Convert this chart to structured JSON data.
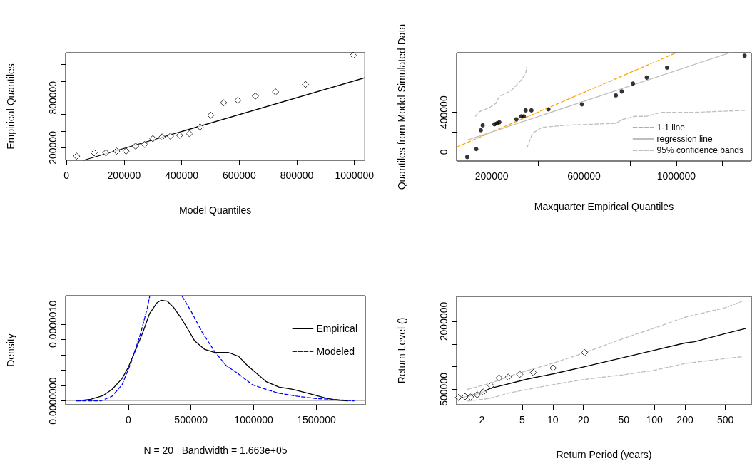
{
  "chart_data": [
    {
      "type": "scatter",
      "xlabel": "Model Quantiles",
      "ylabel": "Empirical Quantiles",
      "xlim": [
        -3000,
        1036000
      ],
      "ylim": [
        50000,
        1340000
      ],
      "xticks": [
        0,
        200000,
        400000,
        600000,
        800000,
        1000000
      ],
      "yticks": [
        200000,
        {
          "value": 400000,
          "label": null
        },
        {
          "value": 600000,
          "label": null
        },
        800000,
        {
          "value": 1000000,
          "label": null
        },
        {
          "value": 1200000,
          "label": null
        }
      ],
      "grid": false,
      "series": [
        {
          "color": "#000000",
          "marker": "diamond",
          "x": [
            35000,
            96000,
            137000,
            174000,
            207000,
            240000,
            271000,
            300000,
            332000,
            361000,
            393000,
            427000,
            464000,
            501000,
            546000,
            595000,
            656000,
            726000,
            830000,
            996000
          ],
          "values": [
            100000,
            140000,
            140000,
            160000,
            160000,
            220000,
            240000,
            310000,
            330000,
            340000,
            350000,
            370000,
            450000,
            590000,
            740000,
            770000,
            820000,
            870000,
            960000,
            1310000
          ]
        },
        {
          "type": "line",
          "color": "#000000",
          "marker": "none",
          "line_style": "solid",
          "x": [
            59000,
            1036000
          ],
          "values": [
            50000,
            1040000
          ]
        }
      ]
    },
    {
      "type": "scatter",
      "xlabel": "Maxquarter Empirical Quantiles",
      "ylabel": "Quantiles from Model Simulated Data",
      "xlim": [
        48000,
        1325000
      ],
      "ylim": [
        -90000,
        1000000
      ],
      "xticks": [
        200000,
        {
          "value": 400000,
          "label": null
        },
        600000,
        {
          "value": 800000,
          "label": null
        },
        1000000,
        {
          "value": 1200000,
          "label": null
        }
      ],
      "yticks": [
        0,
        {
          "value": 200000,
          "label": null
        },
        400000,
        {
          "value": 600000,
          "label": null
        },
        {
          "value": 800000,
          "label": null
        }
      ],
      "grid": false,
      "legend": "bottom right",
      "series": [
        {
          "color": "#000000",
          "marker": "circle",
          "x": [
            94000,
            133000,
            153000,
            161000,
            212000,
            223000,
            233000,
            307000,
            328000,
            339000,
            347000,
            372000,
            446000,
            591000,
            738000,
            764000,
            812000,
            872000,
            960000,
            1296000
          ],
          "values": [
            -50000,
            30000,
            220000,
            270000,
            280000,
            290000,
            300000,
            330000,
            360000,
            360000,
            420000,
            420000,
            430000,
            480000,
            570000,
            610000,
            690000,
            750000,
            850000,
            970000
          ]
        },
        {
          "type": "line",
          "name": "1-1 line",
          "color": "#ffa500",
          "marker": "none",
          "line_style": "dashed",
          "x": [
            48000,
            1000000
          ],
          "values": [
            50000,
            1000000
          ]
        },
        {
          "type": "line",
          "name": "regression line",
          "color": "#bebebe",
          "marker": "none",
          "line_style": "solid",
          "x": [
            94000,
            1232000
          ],
          "values": [
            120000,
            1000000
          ]
        },
        {
          "type": "line",
          "name": "95% confidence bands",
          "color": "#bebebe",
          "marker": "none",
          "line_style": "dashed",
          "x": [
            130000,
            140000,
            192000,
            218000,
            233000,
            285000,
            326000,
            347000,
            352000,
            null,
            352000,
            377000,
            419000,
            522000,
            738000,
            769000,
            820000,
            872000,
            934000,
            1078000,
            1300000
          ],
          "values": [
            360000,
            400000,
            450000,
            490000,
            560000,
            620000,
            720000,
            790000,
            860000,
            null,
            40000,
            190000,
            250000,
            270000,
            290000,
            330000,
            360000,
            360000,
            400000,
            400000,
            420000
          ]
        }
      ]
    },
    {
      "type": "line",
      "xlabel": "N = 20   Bandwidth = 1.663e+05",
      "ylabel": "Density",
      "xlim": [
        -500000,
        1890000
      ],
      "ylim": [
        -5e-08,
        1.37e-06
      ],
      "xticks": [
        0,
        500000,
        1000000,
        1500000
      ],
      "yticks": [
        {
          "value": 0,
          "label": "0.0000000"
        },
        {
          "value": 2e-07,
          "label": null
        },
        {
          "value": 4e-07,
          "label": null
        },
        {
          "value": 6e-07,
          "label": null
        },
        {
          "value": 8e-07,
          "label": null
        },
        {
          "value": 1e-06,
          "label": "0.0000010"
        },
        {
          "value": 1.2e-06,
          "label": null
        }
      ],
      "grid": false,
      "legend": "top right",
      "ref_lines": [
        {
          "axis": "y",
          "value": 0,
          "color": "#bebebe"
        }
      ],
      "series": [
        {
          "name": "Empirical",
          "color": "#000000",
          "marker": "none",
          "line_style": "solid",
          "x": [
            -410000,
            -300000,
            -200000,
            -130000,
            -50000,
            0,
            60000,
            120000,
            170000,
            230000,
            260000,
            310000,
            360000,
            420000,
            480000,
            530000,
            610000,
            690000,
            800000,
            880000,
            950000,
            1030000,
            1100000,
            1200000,
            1310000,
            1410000,
            1500000,
            1590000,
            1670000,
            1750000
          ],
          "values": [
            0,
            2e-08,
            7e-08,
            1.5e-07,
            2.9e-07,
            4.4e-07,
            6.7e-07,
            9.1e-07,
            1.14e-06,
            1.28e-06,
            1.31e-06,
            1.3e-06,
            1.22e-06,
            1.08e-06,
            9.2e-07,
            7.8e-07,
            6.7e-07,
            6.3e-07,
            6.3e-07,
            5.8e-07,
            4.6e-07,
            3.5e-07,
            2.5e-07,
            1.8e-07,
            1.5e-07,
            1.1e-07,
            7e-08,
            3e-08,
            1e-08,
            0
          ]
        },
        {
          "name": "Modeled",
          "color": "#0000ff",
          "marker": "none",
          "line_style": "dashed",
          "x": [
            -410000,
            -220000,
            -130000,
            -50000,
            20000,
            100000,
            150000,
            170000,
            null,
            430000,
            500000,
            590000,
            690000,
            780000,
            880000,
            990000,
            1100000,
            1200000,
            1350000,
            1500000,
            1630000,
            1800000
          ],
          "values": [
            0,
            0,
            6e-08,
            2.1e-07,
            4.9e-07,
            8.9e-07,
            1.2e-06,
            1.36e-06,
            null,
            1.36e-06,
            1.17e-06,
            8.9e-07,
            6.4e-07,
            4.6e-07,
            3.5e-07,
            2.1e-07,
            1.5e-07,
            1e-07,
            6e-08,
            3e-08,
            2e-08,
            0
          ]
        }
      ]
    },
    {
      "type": "line",
      "xlabel": "Return Period (years)",
      "ylabel": "Return Level ()",
      "log": "x",
      "xlim": [
        1.13,
        900
      ],
      "ylim": [
        160000,
        2550000
      ],
      "xticks": [
        2,
        5,
        10,
        20,
        50,
        100,
        200,
        500
      ],
      "yticks": [
        500000,
        {
          "value": 1000000,
          "label": null
        },
        {
          "value": 1500000,
          "label": null
        },
        2000000,
        {
          "value": 2500000,
          "label": null
        }
      ],
      "grid": false,
      "series": [
        {
          "color": "#000000",
          "marker": "none",
          "line_style": "solid",
          "x": [
            1.13,
            1.49,
            1.97,
            2.41,
            3.34,
            5.72,
            10,
            20.6,
            49.3,
            99.3,
            198,
            248,
            500,
            788
          ],
          "values": [
            300000,
            350000,
            420000,
            520000,
            600000,
            730000,
            840000,
            1000000,
            1200000,
            1360000,
            1520000,
            1550000,
            1730000,
            1840000
          ]
        },
        {
          "color": "#bebebe",
          "marker": "none",
          "line_style": "dashed",
          "x": [
            1.45,
            2.41,
            3.71,
            5.72,
            9.79,
            20.8,
            49.3,
            99.3,
            200,
            500,
            728
          ],
          "values": [
            500000,
            630000,
            790000,
            920000,
            1070000,
            1310000,
            1620000,
            1850000,
            2090000,
            2300000,
            2440000
          ]
        },
        {
          "color": "#bebebe",
          "marker": "none",
          "line_style": "dashed",
          "x": [
            1.45,
            2.41,
            3.71,
            5.72,
            9.79,
            20.8,
            49.3,
            99.3,
            200,
            500,
            728
          ],
          "values": [
            240000,
            300000,
            420000,
            500000,
            600000,
            720000,
            820000,
            920000,
            1070000,
            1180000,
            1220000
          ]
        },
        {
          "type": "scatter",
          "color": "#000000",
          "marker": "diamond",
          "x": [
            1.18,
            1.37,
            1.55,
            1.8,
            2.07,
            2.46,
            2.96,
            3.65,
            4.73,
            6.43,
            10.07,
            20.6
          ],
          "values": [
            320000,
            340000,
            330000,
            380000,
            440000,
            580000,
            750000,
            770000,
            830000,
            870000,
            970000,
            1310000
          ]
        }
      ]
    }
  ]
}
